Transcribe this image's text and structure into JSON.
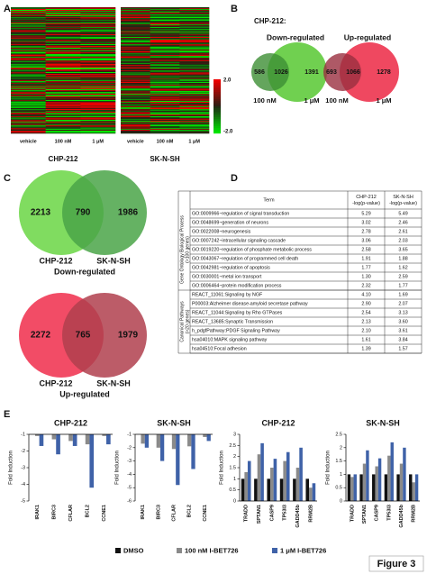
{
  "panel_labels": [
    "A",
    "B",
    "C",
    "D",
    "E"
  ],
  "heatmap": {
    "cell_lines": [
      "CHP-212",
      "SK-N-SH"
    ],
    "conditions": [
      "vehicle",
      "100 nM",
      "1 μM"
    ],
    "scale": [
      "2.0",
      "-2.0"
    ]
  },
  "venn_b": {
    "title": "CHP-212:",
    "sets": [
      "100 nM",
      "1 μM"
    ],
    "groups": [
      {
        "label": "Down-regulated",
        "counts": [
          586,
          1026,
          1391
        ]
      },
      {
        "label": "Up-regulated",
        "counts": [
          693,
          1066,
          1278
        ]
      }
    ]
  },
  "venn_c": {
    "sets": [
      "CHP-212",
      "SK-N-SH"
    ],
    "groups": [
      {
        "label": "Down-regulated",
        "counts": [
          2213,
          790,
          1986
        ]
      },
      {
        "label": "Up-regulated",
        "counts": [
          2272,
          765,
          1979
        ]
      }
    ]
  },
  "table": {
    "header": [
      [
        "Term"
      ],
      [
        "CHP-212",
        "-log(p-value)"
      ],
      [
        "SK-N-SH",
        "-log(p-value)"
      ]
    ],
    "groups": [
      {
        "label": [
          "Gene Ontology Biological Process",
          "(>100 genes)"
        ],
        "rows": [
          [
            "GO:0009966~regulation of signal transduction",
            "5.29",
            "5.49"
          ],
          [
            "GO:0048699~generation of neurons",
            "3.02",
            "2.46"
          ],
          [
            "GO:0022008~neurogenesis",
            "2.78",
            "2.61"
          ],
          [
            "GO:0007242~intracellular signaling cascade",
            "3.06",
            "2.03"
          ],
          [
            "GO:0019220~regulation of phosphate metabolic process",
            "2.58",
            "3.65"
          ],
          [
            "GO:0043067~regulation of programmed cell death",
            "1.91",
            "1.88"
          ],
          [
            "GO:0042981~regulation of apoptosis",
            "1.77",
            "1.62"
          ],
          [
            "GO:0030001~metal ion transport",
            "1.30",
            "2.59"
          ],
          [
            "GO:0006464~protein modification process",
            "2.32",
            "1.77"
          ]
        ]
      },
      {
        "label": [
          "Canonical Pathways",
          "(>20 genes)"
        ],
        "rows": [
          [
            "REACT_11061:Signaling by NGF",
            "4.10",
            "1.69"
          ],
          [
            "P00003:Alzheimer disease-amyloid secretase pathway",
            "2.90",
            "2.07"
          ],
          [
            "REACT_11044:Signaling by Rho GTPases",
            "2.54",
            "3.13"
          ],
          [
            "REACT_13685:Synaptic Transmission",
            "2.13",
            "3.60"
          ],
          [
            "h_pdgfPathway:PDGF Signaling Pathway",
            "2.10",
            "3.61"
          ],
          [
            "hsa04010:MAPK signaling pathway",
            "1.61",
            "3.84"
          ],
          [
            "hsa04510:Focal adhesion",
            "1.39",
            "1.57"
          ]
        ]
      }
    ]
  },
  "chart_data": [
    {
      "type": "bar",
      "title": "CHP-212",
      "y_label": "Fold Induction",
      "categories": [
        "IRAK1",
        "BIRC3",
        "CFLAR",
        "BCL2",
        "CCNE1"
      ],
      "series": [
        {
          "name": "DMSO",
          "color": "#111111",
          "values": [
            -1,
            -1,
            -1,
            -1,
            -1
          ]
        },
        {
          "name": "100 nM I-BET726",
          "color": "#8a8a8a",
          "values": [
            -1.1,
            -1.3,
            -1.4,
            -1.6,
            -1.1
          ]
        },
        {
          "name": "1 μM I-BET726",
          "color": "#3f62a8",
          "values": [
            -1.7,
            -2.2,
            -1.7,
            -4.2,
            -1.6
          ]
        }
      ],
      "ylim": [
        -5,
        -1
      ],
      "yticks": [
        -1,
        -2,
        -3,
        -4,
        -5
      ]
    },
    {
      "type": "bar",
      "title": "SK-N-SH",
      "y_label": "Fold Induction",
      "categories": [
        "IRAK1",
        "BIRC3",
        "CFLAR",
        "BCL2",
        "CCNE1"
      ],
      "series": [
        {
          "color": "#111111",
          "values": [
            -1,
            -1,
            -1,
            -1,
            -1
          ]
        },
        {
          "color": "#8a8a8a",
          "values": [
            -1.7,
            -2.0,
            -2.1,
            -1.9,
            -1.2
          ]
        },
        {
          "color": "#3f62a8",
          "values": [
            -2.0,
            -3.0,
            -4.8,
            -3.6,
            -1.5
          ]
        }
      ],
      "ylim": [
        -6,
        -1
      ],
      "yticks": [
        -1,
        -2,
        -3,
        -4,
        -5,
        -6
      ]
    },
    {
      "type": "bar",
      "title": "CHP-212",
      "y_label": "Fold Induction",
      "categories": [
        "TRADD",
        "SPTAN1",
        "CASP9",
        "TP53I3",
        "GADD45b",
        "RRM2B"
      ],
      "series": [
        {
          "color": "#111111",
          "values": [
            1,
            1,
            1,
            1,
            1,
            1
          ]
        },
        {
          "color": "#8a8a8a",
          "values": [
            1.3,
            2.1,
            1.5,
            1.8,
            1.5,
            0.6
          ]
        },
        {
          "color": "#3f62a8",
          "values": [
            1.8,
            2.6,
            1.9,
            2.2,
            2.4,
            0.8
          ]
        }
      ],
      "ylim": [
        0,
        3
      ],
      "yticks": [
        0,
        0.5,
        1,
        1.5,
        2,
        2.5,
        3
      ]
    },
    {
      "type": "bar",
      "title": "SK-N-SH",
      "y_label": "Fold Induction",
      "categories": [
        "TRADD",
        "SPTAN1",
        "CASP9",
        "TP53I3",
        "GADD45b",
        "RRM2B"
      ],
      "series": [
        {
          "color": "#111111",
          "values": [
            1,
            1,
            1,
            1,
            1,
            1
          ]
        },
        {
          "color": "#8a8a8a",
          "values": [
            0.9,
            1.4,
            1.3,
            1.7,
            1.4,
            0.7
          ]
        },
        {
          "color": "#3f62a8",
          "values": [
            1.0,
            1.9,
            1.6,
            2.2,
            2.0,
            1.0
          ]
        }
      ],
      "ylim": [
        0,
        2.5
      ],
      "yticks": [
        0,
        0.5,
        1,
        1.5,
        2,
        2.5
      ]
    }
  ],
  "footer": "Figure 3"
}
